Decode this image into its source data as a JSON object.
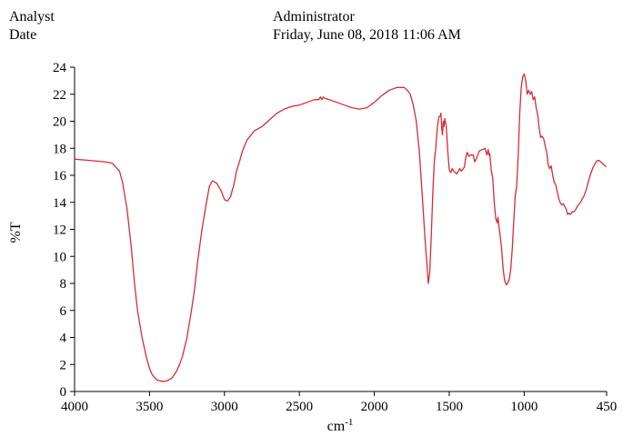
{
  "header": {
    "analyst_label": "Analyst",
    "analyst_value": "Administrator",
    "date_label": "Date",
    "date_value": "Friday, June 08, 2018 11:06 AM"
  },
  "chart_data": {
    "type": "line",
    "title": "",
    "xlabel": "cm",
    "xlabel_superscript": "-1",
    "ylabel": "%T",
    "xlim": [
      4000,
      450
    ],
    "ylim": [
      0,
      24
    ],
    "x_reversed": true,
    "x_ticks": [
      4000,
      3500,
      3000,
      2500,
      2000,
      1500,
      1000,
      450
    ],
    "y_ticks": [
      0,
      2,
      4,
      6,
      8,
      10,
      12,
      14,
      16,
      18,
      20,
      22,
      24
    ],
    "grid": false,
    "legend": "none",
    "line_color": "#d92b35",
    "series": [
      {
        "x": [
          4000,
          3900,
          3800,
          3750,
          3700,
          3680,
          3650,
          3620,
          3600,
          3580,
          3550,
          3520,
          3500,
          3480,
          3450,
          3420,
          3400,
          3380,
          3350,
          3320,
          3300,
          3280,
          3250,
          3220,
          3200,
          3180,
          3150,
          3120,
          3100,
          3080,
          3050,
          3020,
          3000,
          2980,
          2960,
          2950,
          2940,
          2930,
          2920,
          2900,
          2880,
          2850,
          2800,
          2750,
          2700,
          2650,
          2600,
          2550,
          2500,
          2450,
          2400,
          2370,
          2360,
          2350,
          2340,
          2330,
          2300,
          2250,
          2200,
          2150,
          2100,
          2050,
          2000,
          1950,
          1900,
          1850,
          1800,
          1780,
          1760,
          1740,
          1720,
          1700,
          1680,
          1660,
          1650,
          1640,
          1630,
          1620,
          1610,
          1600,
          1590,
          1580,
          1570,
          1560,
          1555,
          1550,
          1545,
          1540,
          1535,
          1530,
          1520,
          1510,
          1500,
          1490,
          1480,
          1470,
          1450,
          1430,
          1420,
          1400,
          1390,
          1380,
          1370,
          1360,
          1340,
          1330,
          1320,
          1300,
          1280,
          1260,
          1250,
          1240,
          1235,
          1230,
          1220,
          1210,
          1200,
          1190,
          1180,
          1175,
          1170,
          1160,
          1150,
          1140,
          1130,
          1120,
          1110,
          1100,
          1090,
          1080,
          1070,
          1060,
          1050,
          1040,
          1030,
          1020,
          1010,
          1000,
          990,
          980,
          970,
          960,
          950,
          940,
          930,
          920,
          910,
          900,
          890,
          880,
          870,
          860,
          850,
          840,
          830,
          820,
          810,
          800,
          790,
          780,
          770,
          760,
          750,
          740,
          730,
          720,
          710,
          700,
          690,
          680,
          670,
          660,
          650,
          640,
          630,
          620,
          610,
          600,
          590,
          580,
          570,
          560,
          550,
          540,
          530,
          520,
          510,
          500,
          490,
          480,
          470,
          460,
          455
        ],
        "y": [
          17.2,
          17.1,
          17.0,
          16.9,
          16.3,
          15.5,
          13.5,
          10.5,
          8.0,
          6.0,
          4.0,
          2.5,
          1.7,
          1.2,
          0.85,
          0.75,
          0.75,
          0.8,
          1.0,
          1.5,
          2.0,
          2.6,
          4.0,
          6.0,
          7.5,
          9.5,
          12.0,
          14.0,
          15.2,
          15.6,
          15.4,
          14.8,
          14.2,
          14.1,
          14.4,
          14.8,
          15.2,
          15.7,
          16.3,
          17.0,
          17.8,
          18.6,
          19.3,
          19.6,
          20.1,
          20.6,
          20.9,
          21.1,
          21.2,
          21.4,
          21.6,
          21.6,
          21.8,
          21.6,
          21.8,
          21.7,
          21.6,
          21.4,
          21.2,
          21.0,
          20.9,
          21.0,
          21.4,
          21.9,
          22.3,
          22.5,
          22.5,
          22.3,
          22.0,
          21.2,
          20.0,
          17.8,
          14.5,
          11.0,
          9.5,
          8.0,
          8.8,
          11.5,
          14.5,
          17.0,
          18.0,
          19.5,
          20.3,
          20.4,
          20.6,
          19.5,
          19.0,
          20.0,
          19.6,
          20.2,
          19.6,
          17.8,
          16.4,
          16.2,
          16.5,
          16.3,
          16.1,
          16.5,
          16.3,
          16.6,
          17.3,
          17.7,
          17.4,
          17.5,
          17.5,
          17.0,
          17.2,
          17.8,
          17.9,
          18.0,
          17.5,
          17.9,
          17.5,
          17.6,
          16.4,
          15.8,
          14.0,
          12.8,
          12.5,
          12.9,
          12.3,
          11.5,
          10.5,
          9.0,
          8.2,
          7.9,
          8.0,
          8.3,
          9.0,
          10.5,
          12.5,
          14.5,
          15.2,
          17.5,
          20.5,
          22.5,
          23.3,
          23.5,
          23.0,
          22.0,
          22.3,
          22.0,
          22.2,
          21.6,
          21.8,
          21.0,
          20.5,
          19.5,
          18.8,
          18.9,
          18.7,
          18.2,
          17.7,
          16.8,
          16.5,
          16.7,
          16.0,
          15.5,
          15.3,
          14.8,
          14.3,
          14.0,
          13.8,
          13.9,
          13.7,
          13.5,
          13.1,
          13.2,
          13.1,
          13.3,
          13.3,
          13.4,
          13.6,
          13.8,
          13.9,
          14.1,
          14.3,
          14.5,
          14.8,
          15.2,
          15.6,
          16.0,
          16.3,
          16.6,
          16.8,
          17.0,
          17.1,
          17.1,
          17.0,
          16.9,
          16.8,
          16.7,
          16.6
        ]
      }
    ]
  }
}
